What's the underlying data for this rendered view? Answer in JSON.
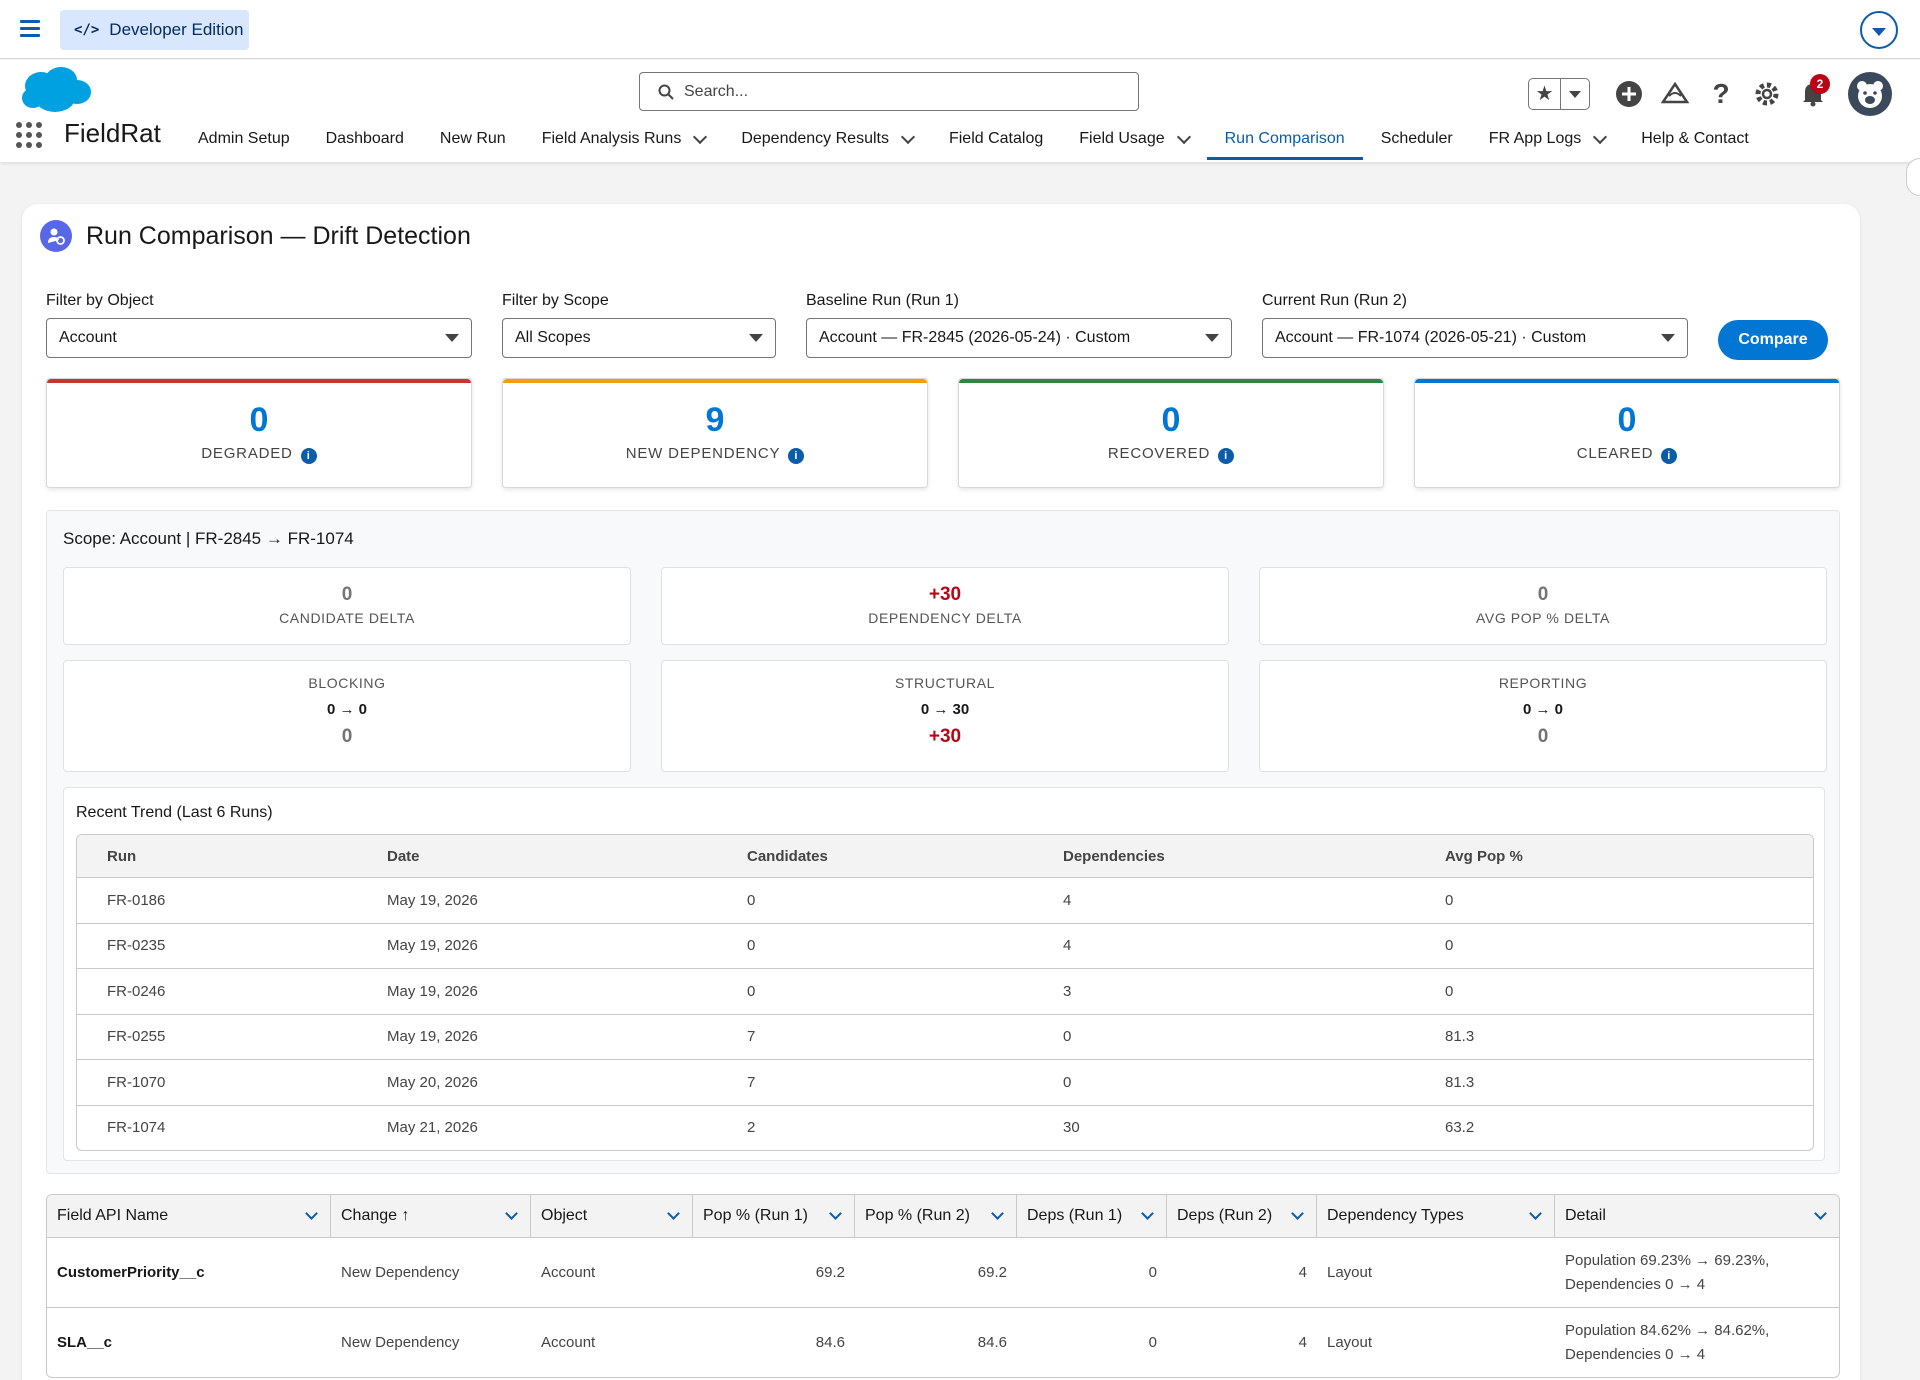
{
  "topbar": {
    "edition": "Developer Edition",
    "edition_icon": "</>"
  },
  "header": {
    "search_placeholder": "Search...",
    "notification_count": "2",
    "app_name": "FieldRat",
    "nav": [
      {
        "label": "Admin Setup",
        "dropdown": false
      },
      {
        "label": "Dashboard",
        "dropdown": false
      },
      {
        "label": "New Run",
        "dropdown": false
      },
      {
        "label": "Field Analysis Runs",
        "dropdown": true
      },
      {
        "label": "Dependency Results",
        "dropdown": true
      },
      {
        "label": "Field Catalog",
        "dropdown": false
      },
      {
        "label": "Field Usage",
        "dropdown": true
      },
      {
        "label": "Run Comparison",
        "dropdown": false,
        "active": true
      },
      {
        "label": "Scheduler",
        "dropdown": false
      },
      {
        "label": "FR App Logs",
        "dropdown": true
      },
      {
        "label": "Help & Contact",
        "dropdown": false
      }
    ]
  },
  "page": {
    "title": "Run Comparison — Drift Detection",
    "filters": {
      "object_label": "Filter by Object",
      "object_value": "Account",
      "scope_label": "Filter by Scope",
      "scope_value": "All Scopes",
      "baseline_label": "Baseline Run (Run 1)",
      "baseline_value": "Account — FR-2845 (2026-05-24) · Custom",
      "current_label": "Current Run (Run 2)",
      "current_value": "Account — FR-1074 (2026-05-21) · Custom",
      "compare_label": "Compare"
    },
    "stats": [
      {
        "value": "0",
        "label": "DEGRADED",
        "color": "#c23934"
      },
      {
        "value": "9",
        "label": "NEW DEPENDENCY",
        "color": "#f59e0b"
      },
      {
        "value": "0",
        "label": "RECOVERED",
        "color": "#2e844a"
      },
      {
        "value": "0",
        "label": "CLEARED",
        "color": "#0176d3"
      }
    ],
    "scope": {
      "title": "Scope: Account | FR-2845 → FR-1074",
      "deltas": [
        {
          "value": "0",
          "label": "CANDIDATE DELTA"
        },
        {
          "value": "+30",
          "label": "DEPENDENCY DELTA"
        },
        {
          "value": "0",
          "label": "AVG POP % DELTA"
        }
      ],
      "types": [
        {
          "label": "BLOCKING",
          "range": "0 → 0",
          "value": "0"
        },
        {
          "label": "STRUCTURAL",
          "range": "0 → 30",
          "value": "+30"
        },
        {
          "label": "REPORTING",
          "range": "0 → 0",
          "value": "0"
        }
      ]
    },
    "trend": {
      "title": "Recent Trend (Last 6 Runs)",
      "columns": [
        "Run",
        "Date",
        "Candidates",
        "Dependencies",
        "Avg Pop %"
      ],
      "rows": [
        [
          "FR-0186",
          "May 19, 2026",
          "0",
          "4",
          "0"
        ],
        [
          "FR-0235",
          "May 19, 2026",
          "0",
          "4",
          "0"
        ],
        [
          "FR-0246",
          "May 19, 2026",
          "0",
          "3",
          "0"
        ],
        [
          "FR-0255",
          "May 19, 2026",
          "7",
          "0",
          "81.3"
        ],
        [
          "FR-1070",
          "May 20, 2026",
          "7",
          "0",
          "81.3"
        ],
        [
          "FR-1074",
          "May 21, 2026",
          "2",
          "30",
          "63.2"
        ]
      ]
    },
    "details": {
      "columns": [
        "Field API Name",
        "Change",
        "Object",
        "Pop % (Run 1)",
        "Pop % (Run 2)",
        "Deps (Run 1)",
        "Deps (Run 2)",
        "Dependency Types",
        "Detail"
      ],
      "sort_icon": "↑",
      "rows": [
        {
          "field": "CustomerPriority__c",
          "change": "New Dependency",
          "object": "Account",
          "pop1": "69.2",
          "pop2": "69.2",
          "deps1": "0",
          "deps2": "4",
          "types": "Layout",
          "detail1": "Population 69.23% → 69.23%,",
          "detail2": "Dependencies 0 → 4"
        },
        {
          "field": "SLA__c",
          "change": "New Dependency",
          "object": "Account",
          "pop1": "84.6",
          "pop2": "84.6",
          "deps1": "0",
          "deps2": "4",
          "types": "Layout",
          "detail1": "Population 84.62% → 84.62%,",
          "detail2": "Dependencies 0 → 4"
        }
      ]
    }
  }
}
